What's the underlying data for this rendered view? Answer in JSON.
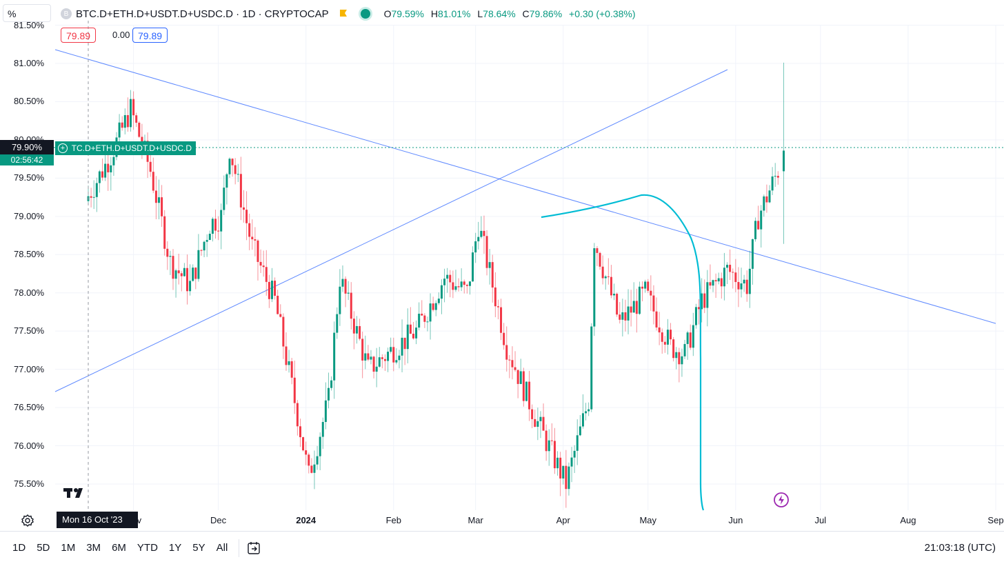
{
  "toolbar": {
    "unit_value": "%",
    "symbol_title": "BTC.D+ETH.D+USDT.D+USDC.D · 1D · CRYPTOCAP",
    "symbol_icon_letter": "B",
    "ohlc": {
      "o_key": "O",
      "o_val": "79.59%",
      "h_key": "H",
      "h_val": "81.01%",
      "l_key": "L",
      "l_val": "78.64%",
      "c_key": "C",
      "c_val": "79.86%",
      "change": "+0.30 (+0.38%)"
    }
  },
  "indicator_values": {
    "left": "79.89",
    "middle": "0.00",
    "right": "79.89"
  },
  "price_axis": {
    "labels": [
      "81.50%",
      "81.00%",
      "80.50%",
      "80.00%",
      "79.50%",
      "79.00%",
      "78.50%",
      "78.00%",
      "77.50%",
      "77.00%",
      "76.50%",
      "76.00%",
      "75.50%"
    ],
    "current_price": "79.90%",
    "countdown": "02:56:42",
    "series_label": "BTC.D+ETH.D+USDT.D+USDC.D"
  },
  "time_axis": {
    "labels": [
      "Nov",
      "Dec",
      "2024",
      "Feb",
      "Mar",
      "Apr",
      "May",
      "Jun",
      "Jul",
      "Aug",
      "Sep"
    ],
    "crosshair_date": "Mon 16 Oct '23"
  },
  "bottom_bar": {
    "ranges": [
      "1D",
      "5D",
      "1M",
      "3M",
      "6M",
      "YTD",
      "1Y",
      "5Y",
      "All"
    ],
    "clock": "21:03:18 (UTC)"
  },
  "colors": {
    "up": "#089981",
    "down": "#f23645",
    "trendline": "#2962ff",
    "drawing": "#00bcd4",
    "grid": "#f0f3fa"
  },
  "icons": {
    "settings": "gear-icon",
    "goto_date": "calendar-arrow-icon",
    "alert": "flash-icon",
    "logo": "tradingview-logo"
  },
  "chart_data": {
    "type": "candlestick",
    "title": "BTC.D+ETH.D+USDT.D+USDC.D · 1D · CRYPTOCAP",
    "ylim": [
      75.2,
      81.6
    ],
    "y_unit": "%",
    "x_range": [
      "2023-10-16",
      "2024-09-01"
    ],
    "last": {
      "open": 79.59,
      "high": 81.01,
      "low": 78.64,
      "close": 79.86
    },
    "segments": [
      {
        "from": "2023-10-16",
        "to": "2023-10-25",
        "start": 79.2,
        "end": 79.8
      },
      {
        "from": "2023-10-25",
        "to": "2023-11-01",
        "start": 79.8,
        "end": 80.4
      },
      {
        "from": "2023-11-01",
        "to": "2023-11-08",
        "start": 80.4,
        "end": 79.6
      },
      {
        "from": "2023-11-08",
        "to": "2023-11-15",
        "start": 79.6,
        "end": 78.4
      },
      {
        "from": "2023-11-15",
        "to": "2023-11-22",
        "start": 78.4,
        "end": 78.1
      },
      {
        "from": "2023-11-22",
        "to": "2023-11-29",
        "start": 78.1,
        "end": 78.9
      },
      {
        "from": "2023-11-29",
        "to": "2023-12-03",
        "start": 78.9,
        "end": 79.0
      },
      {
        "from": "2023-12-03",
        "to": "2023-12-06",
        "start": 79.0,
        "end": 79.9
      },
      {
        "from": "2023-12-06",
        "to": "2023-12-14",
        "start": 79.9,
        "end": 78.6
      },
      {
        "from": "2023-12-14",
        "to": "2023-12-22",
        "start": 78.6,
        "end": 77.9
      },
      {
        "from": "2023-12-22",
        "to": "2023-12-30",
        "start": 77.9,
        "end": 76.4
      },
      {
        "from": "2023-12-30",
        "to": "2024-01-03",
        "start": 76.4,
        "end": 75.6
      },
      {
        "from": "2024-01-03",
        "to": "2024-01-10",
        "start": 75.6,
        "end": 76.6
      },
      {
        "from": "2024-01-10",
        "to": "2024-01-14",
        "start": 76.6,
        "end": 78.2
      },
      {
        "from": "2024-01-14",
        "to": "2024-01-24",
        "start": 78.2,
        "end": 77.0
      },
      {
        "from": "2024-01-24",
        "to": "2024-02-10",
        "start": 77.0,
        "end": 77.5
      },
      {
        "from": "2024-02-10",
        "to": "2024-02-20",
        "start": 77.5,
        "end": 78.2
      },
      {
        "from": "2024-02-20",
        "to": "2024-02-28",
        "start": 78.2,
        "end": 78.0
      },
      {
        "from": "2024-02-28",
        "to": "2024-03-03",
        "start": 78.0,
        "end": 78.9
      },
      {
        "from": "2024-03-03",
        "to": "2024-03-13",
        "start": 78.9,
        "end": 77.3
      },
      {
        "from": "2024-03-13",
        "to": "2024-03-24",
        "start": 77.3,
        "end": 76.3
      },
      {
        "from": "2024-03-24",
        "to": "2024-03-29",
        "start": 76.3,
        "end": 75.9
      },
      {
        "from": "2024-03-29",
        "to": "2024-04-03",
        "start": 75.9,
        "end": 75.5
      },
      {
        "from": "2024-04-03",
        "to": "2024-04-11",
        "start": 75.5,
        "end": 76.6
      },
      {
        "from": "2024-04-11",
        "to": "2024-04-13",
        "start": 76.6,
        "end": 78.7
      },
      {
        "from": "2024-04-13",
        "to": "2024-04-22",
        "start": 78.7,
        "end": 77.6
      },
      {
        "from": "2024-04-22",
        "to": "2024-05-01",
        "start": 77.6,
        "end": 78.0
      },
      {
        "from": "2024-05-01",
        "to": "2024-05-10",
        "start": 78.0,
        "end": 77.3
      },
      {
        "from": "2024-05-10",
        "to": "2024-05-15",
        "start": 77.3,
        "end": 77.2
      },
      {
        "from": "2024-05-15",
        "to": "2024-05-21",
        "start": 77.2,
        "end": 77.9
      },
      {
        "from": "2024-05-21",
        "to": "2024-05-30",
        "start": 77.9,
        "end": 78.3
      },
      {
        "from": "2024-05-30",
        "to": "2024-06-06",
        "start": 78.3,
        "end": 78.1
      },
      {
        "from": "2024-06-06",
        "to": "2024-06-10",
        "start": 78.1,
        "end": 79.0
      },
      {
        "from": "2024-06-10",
        "to": "2024-06-17",
        "start": 79.0,
        "end": 79.6
      }
    ],
    "trendlines": [
      {
        "from": [
          "2023-10-16",
          81.2
        ],
        "to": [
          "2024-09-01",
          77.6
        ]
      },
      {
        "from": [
          "2023-10-16",
          76.7
        ],
        "to": [
          "2024-06-15",
          80.9
        ]
      }
    ],
    "horizontal_line": 79.9,
    "crosshair_x": "2023-10-16",
    "grid": true
  }
}
